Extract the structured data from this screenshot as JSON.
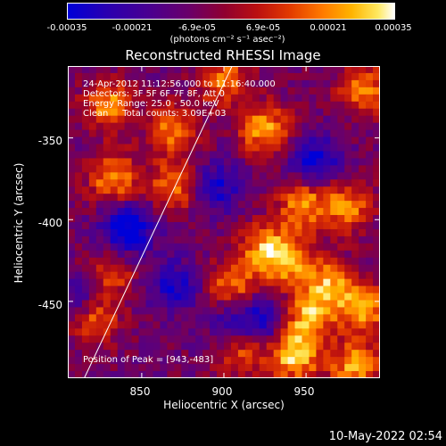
{
  "colorbar": {
    "ticks": [
      "-0.00035",
      "-0.00021",
      "-6.9e-05",
      "6.9e-05",
      "0.00021",
      "0.00035"
    ],
    "unit_label": "(photons cm⁻² s⁻¹ asec⁻²)"
  },
  "annotations": {
    "time_range": "24-Apr-2012 11:12:56.000 to 11:16:40.000",
    "detectors": "Detectors: 3F 5F 6F 7F 8F, Att 0",
    "energy": "Energy Range: 25.0 - 50.0 keV",
    "clean": "Clean     Total counts: 3.09E+03",
    "peak": "Position of Peak = [943,-483]"
  },
  "footer": {
    "date": "10-May-2022 02:54"
  },
  "chart_data": {
    "type": "heatmap",
    "title": "Reconstructed RHESSI Image",
    "xlabel": "Heliocentric X (arcsec)",
    "ylabel": "Heliocentric Y (arcsec)",
    "xlim": [
      805,
      995
    ],
    "ylim": [
      -497,
      -306
    ],
    "xticks": [
      850,
      900,
      950
    ],
    "yticks": [
      -350,
      -400,
      -450
    ],
    "zlim": [
      -0.00035,
      0.00035
    ],
    "limb_line": {
      "x": [
        815,
        905
      ],
      "y": [
        -497,
        -306
      ]
    },
    "peak": {
      "x": 943,
      "y": -483
    },
    "hot_regions": [
      {
        "x": 830,
        "y": -330,
        "level": 0.8
      },
      {
        "x": 870,
        "y": -345,
        "level": 0.75
      },
      {
        "x": 925,
        "y": -345,
        "level": 0.85
      },
      {
        "x": 900,
        "y": -315,
        "level": 0.7
      },
      {
        "x": 985,
        "y": -320,
        "level": 0.75
      },
      {
        "x": 833,
        "y": -375,
        "level": 0.8
      },
      {
        "x": 870,
        "y": -380,
        "level": 0.7
      },
      {
        "x": 948,
        "y": -390,
        "level": 0.8
      },
      {
        "x": 975,
        "y": -392,
        "level": 0.75
      },
      {
        "x": 925,
        "y": -418,
        "level": 0.75
      },
      {
        "x": 940,
        "y": -425,
        "level": 0.75
      },
      {
        "x": 905,
        "y": -440,
        "level": 0.7
      },
      {
        "x": 965,
        "y": -440,
        "level": 0.8
      },
      {
        "x": 985,
        "y": -455,
        "level": 0.85
      },
      {
        "x": 950,
        "y": -460,
        "level": 0.85
      },
      {
        "x": 820,
        "y": -460,
        "level": 0.9
      },
      {
        "x": 830,
        "y": -435,
        "level": 0.55
      },
      {
        "x": 943,
        "y": -483,
        "level": 1.0
      },
      {
        "x": 980,
        "y": -490,
        "level": 0.85
      },
      {
        "x": 910,
        "y": -480,
        "level": 0.7
      }
    ],
    "cold_regions": [
      {
        "x": 842,
        "y": -405,
        "level": -0.85
      },
      {
        "x": 815,
        "y": -450,
        "level": -0.7
      },
      {
        "x": 955,
        "y": -365,
        "level": -0.7
      },
      {
        "x": 895,
        "y": -380,
        "level": -0.6
      },
      {
        "x": 925,
        "y": -462,
        "level": -0.65
      },
      {
        "x": 870,
        "y": -440,
        "level": -0.55
      },
      {
        "x": 905,
        "y": -465,
        "level": -0.5
      }
    ]
  }
}
